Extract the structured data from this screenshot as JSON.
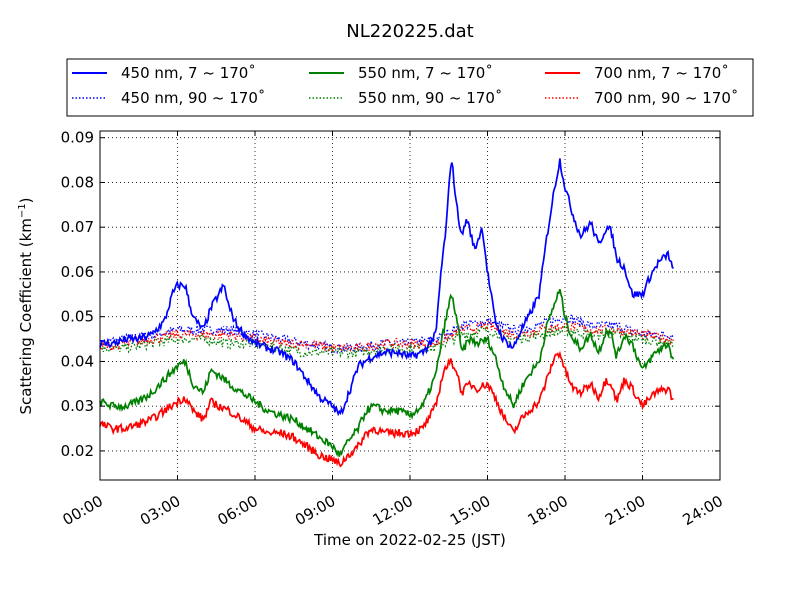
{
  "chart_data": {
    "type": "line",
    "title": "NL220225.dat",
    "xlabel": "Time on 2022-02-25 (JST)",
    "ylabel_main": "Scattering Coefficient (km",
    "ylabel_sup": "−1",
    "ylabel_close": ")",
    "xlim": [
      0,
      24
    ],
    "ylim": [
      0.0135,
      0.0915
    ],
    "x_ticks": [
      0,
      3,
      6,
      9,
      12,
      15,
      18,
      21,
      24
    ],
    "x_tick_labels": [
      "00:00",
      "03:00",
      "06:00",
      "09:00",
      "12:00",
      "15:00",
      "18:00",
      "21:00",
      "24:00"
    ],
    "y_ticks": [
      0.02,
      0.03,
      0.04,
      0.05,
      0.06,
      0.07,
      0.08,
      0.09
    ],
    "y_tick_labels": [
      "0.02",
      "0.03",
      "0.04",
      "0.05",
      "0.06",
      "0.07",
      "0.08",
      "0.09"
    ],
    "grid": true,
    "legend_position": "top",
    "x_units": "hours",
    "series": [
      {
        "name": "450 nm, 7 ~ 170˚",
        "color": "#0000ff",
        "style": "solid",
        "x": [
          0,
          0.5,
          1,
          1.5,
          2,
          2.5,
          2.8,
          3,
          3.3,
          3.5,
          3.7,
          4,
          4.3,
          4.6,
          4.8,
          5,
          5.3,
          5.6,
          6,
          6.5,
          7,
          7.5,
          8,
          8.5,
          9,
          9.3,
          9.5,
          9.7,
          10,
          10.5,
          11,
          11.5,
          12,
          12.5,
          13,
          13.2,
          13.4,
          13.6,
          13.8,
          14,
          14.2,
          14.5,
          14.8,
          15,
          15.3,
          15.6,
          16,
          16.3,
          16.6,
          17,
          17.3,
          17.6,
          17.8,
          18,
          18.3,
          18.6,
          19,
          19.3,
          19.6,
          19.8,
          20,
          20.3,
          20.6,
          21,
          21.3,
          21.6,
          22,
          22.2
        ],
        "y": [
          0.044,
          0.044,
          0.045,
          0.045,
          0.046,
          0.049,
          0.055,
          0.057,
          0.057,
          0.052,
          0.049,
          0.047,
          0.052,
          0.055,
          0.057,
          0.052,
          0.048,
          0.046,
          0.044,
          0.043,
          0.042,
          0.04,
          0.036,
          0.032,
          0.03,
          0.028,
          0.031,
          0.034,
          0.039,
          0.041,
          0.042,
          0.042,
          0.041,
          0.042,
          0.046,
          0.06,
          0.07,
          0.086,
          0.075,
          0.068,
          0.072,
          0.065,
          0.07,
          0.06,
          0.049,
          0.045,
          0.043,
          0.047,
          0.05,
          0.055,
          0.068,
          0.079,
          0.085,
          0.079,
          0.073,
          0.068,
          0.071,
          0.066,
          0.07,
          0.069,
          0.063,
          0.061,
          0.055,
          0.055,
          0.059,
          0.062,
          0.064,
          0.06
        ]
      },
      {
        "name": "450 nm, 90 ~ 170˚",
        "color": "#0000ff",
        "style": "dotted",
        "x": [
          0,
          1,
          2,
          3,
          4,
          5,
          6,
          7,
          8,
          9,
          10,
          11,
          12,
          13,
          14,
          15,
          16,
          17,
          18,
          19,
          20,
          21,
          22,
          22.2
        ],
        "y": [
          0.044,
          0.045,
          0.046,
          0.047,
          0.047,
          0.047,
          0.046,
          0.045,
          0.044,
          0.043,
          0.043,
          0.044,
          0.044,
          0.045,
          0.048,
          0.049,
          0.047,
          0.048,
          0.05,
          0.048,
          0.048,
          0.046,
          0.046,
          0.046
        ]
      },
      {
        "name": "550 nm, 7 ~ 170˚",
        "color": "#008000",
        "style": "solid",
        "x": [
          0,
          0.5,
          1,
          1.5,
          2,
          2.5,
          3,
          3.3,
          3.6,
          4,
          4.3,
          4.6,
          5,
          5.5,
          6,
          6.5,
          7,
          7.5,
          8,
          8.5,
          9,
          9.3,
          9.6,
          10,
          10.3,
          10.6,
          11,
          11.5,
          12,
          12.5,
          13,
          13.3,
          13.6,
          13.8,
          14,
          14.3,
          14.6,
          15,
          15.3,
          15.6,
          16,
          16.3,
          16.6,
          17,
          17.3,
          17.6,
          17.8,
          18,
          18.3,
          18.6,
          19,
          19.3,
          19.6,
          19.8,
          20,
          20.3,
          20.6,
          21,
          21.5,
          22,
          22.2
        ],
        "y": [
          0.031,
          0.03,
          0.03,
          0.031,
          0.033,
          0.036,
          0.039,
          0.04,
          0.035,
          0.033,
          0.038,
          0.037,
          0.035,
          0.033,
          0.031,
          0.029,
          0.028,
          0.027,
          0.025,
          0.023,
          0.021,
          0.019,
          0.022,
          0.025,
          0.029,
          0.03,
          0.029,
          0.029,
          0.028,
          0.03,
          0.037,
          0.047,
          0.055,
          0.05,
          0.042,
          0.045,
          0.044,
          0.045,
          0.041,
          0.035,
          0.03,
          0.034,
          0.037,
          0.04,
          0.048,
          0.053,
          0.056,
          0.05,
          0.045,
          0.043,
          0.046,
          0.042,
          0.047,
          0.046,
          0.041,
          0.046,
          0.044,
          0.038,
          0.042,
          0.044,
          0.04
        ]
      },
      {
        "name": "550 nm, 90 ~ 170˚",
        "color": "#008000",
        "style": "dotted",
        "x": [
          0,
          1,
          2,
          3,
          4,
          5,
          6,
          7,
          8,
          9,
          10,
          11,
          12,
          13,
          14,
          15,
          16,
          17,
          18,
          19,
          20,
          21,
          22,
          22.2
        ],
        "y": [
          0.043,
          0.043,
          0.044,
          0.045,
          0.045,
          0.044,
          0.044,
          0.043,
          0.042,
          0.042,
          0.042,
          0.043,
          0.043,
          0.043,
          0.046,
          0.047,
          0.045,
          0.046,
          0.047,
          0.046,
          0.046,
          0.045,
          0.044,
          0.044
        ]
      },
      {
        "name": "700 nm, 7 ~ 170˚",
        "color": "#ff0000",
        "style": "solid",
        "x": [
          0,
          0.5,
          1,
          1.5,
          2,
          2.5,
          3,
          3.3,
          3.6,
          4,
          4.3,
          4.6,
          5,
          5.5,
          6,
          6.5,
          7,
          7.5,
          8,
          8.5,
          9,
          9.3,
          9.6,
          10,
          10.3,
          10.6,
          11,
          11.5,
          12,
          12.5,
          13,
          13.3,
          13.6,
          13.8,
          14,
          14.3,
          14.6,
          15,
          15.3,
          15.6,
          16,
          16.3,
          16.6,
          17,
          17.3,
          17.6,
          17.8,
          18,
          18.3,
          18.6,
          19,
          19.3,
          19.6,
          19.8,
          20,
          20.3,
          20.6,
          21,
          21.5,
          22,
          22.2
        ],
        "y": [
          0.026,
          0.025,
          0.025,
          0.026,
          0.027,
          0.029,
          0.031,
          0.032,
          0.029,
          0.027,
          0.031,
          0.03,
          0.029,
          0.027,
          0.025,
          0.024,
          0.024,
          0.023,
          0.021,
          0.019,
          0.018,
          0.017,
          0.019,
          0.021,
          0.024,
          0.025,
          0.024,
          0.024,
          0.024,
          0.025,
          0.03,
          0.038,
          0.04,
          0.038,
          0.033,
          0.035,
          0.034,
          0.035,
          0.032,
          0.028,
          0.024,
          0.027,
          0.029,
          0.031,
          0.036,
          0.041,
          0.042,
          0.038,
          0.034,
          0.033,
          0.035,
          0.032,
          0.036,
          0.035,
          0.031,
          0.036,
          0.034,
          0.03,
          0.033,
          0.034,
          0.031
        ]
      },
      {
        "name": "700 nm, 90 ~ 170˚",
        "color": "#ff0000",
        "style": "dotted",
        "x": [
          0,
          1,
          2,
          3,
          4,
          5,
          6,
          7,
          8,
          9,
          10,
          11,
          12,
          13,
          14,
          15,
          16,
          17,
          18,
          19,
          20,
          21,
          22,
          22.2
        ],
        "y": [
          0.043,
          0.044,
          0.045,
          0.046,
          0.046,
          0.046,
          0.045,
          0.044,
          0.044,
          0.043,
          0.043,
          0.044,
          0.044,
          0.044,
          0.047,
          0.048,
          0.046,
          0.047,
          0.048,
          0.047,
          0.047,
          0.046,
          0.045,
          0.045
        ]
      }
    ]
  }
}
